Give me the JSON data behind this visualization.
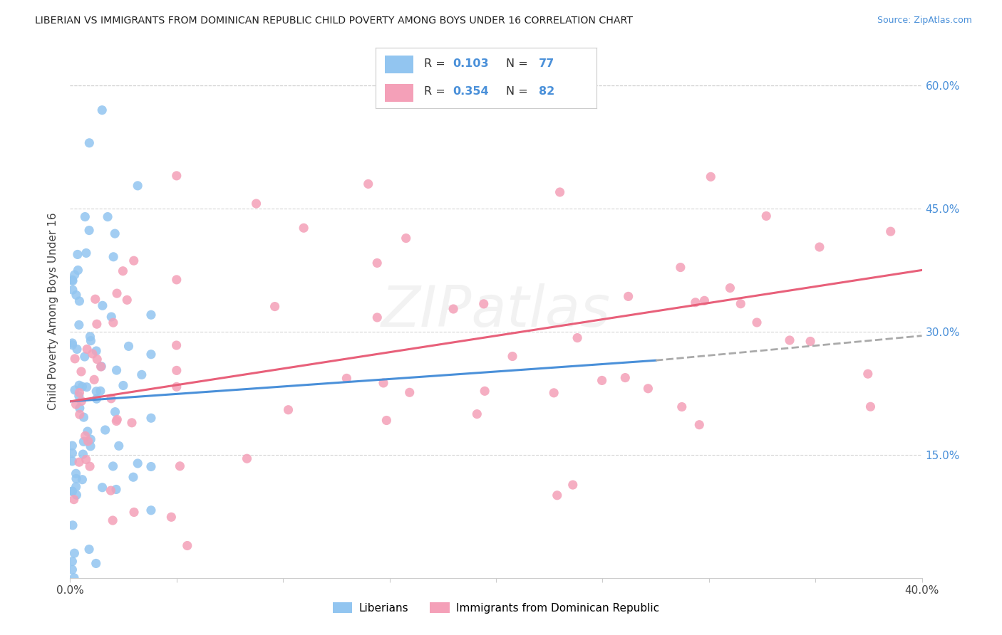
{
  "title": "LIBERIAN VS IMMIGRANTS FROM DOMINICAN REPUBLIC CHILD POVERTY AMONG BOYS UNDER 16 CORRELATION CHART",
  "source": "Source: ZipAtlas.com",
  "ylabel": "Child Poverty Among Boys Under 16",
  "xlim": [
    0,
    0.4
  ],
  "ylim": [
    0,
    0.65
  ],
  "xtick_positions": [
    0.0,
    0.05,
    0.1,
    0.15,
    0.2,
    0.25,
    0.3,
    0.35,
    0.4
  ],
  "xtick_labels": [
    "0.0%",
    "",
    "",
    "",
    "",
    "",
    "",
    "",
    "40.0%"
  ],
  "ytick_positions_right": [
    0.6,
    0.45,
    0.3,
    0.15
  ],
  "ytick_labels_right": [
    "60.0%",
    "45.0%",
    "30.0%",
    "15.0%"
  ],
  "liberian_color": "#92C5F0",
  "dr_color": "#F4A0B8",
  "liberian_line_color": "#4A90D9",
  "dr_line_color": "#E8607A",
  "dashed_line_color": "#AAAAAA",
  "grid_color": "#CCCCCC",
  "background_color": "#FFFFFF",
  "legend_label_1": "Liberians",
  "legend_label_2": "Immigrants from Dominican Republic",
  "liberian_R": 0.103,
  "liberian_N": 77,
  "dr_R": 0.354,
  "dr_N": 82,
  "lib_line_x_start": 0.0,
  "lib_line_x_solid_end": 0.275,
  "lib_line_x_dash_end": 0.4,
  "lib_line_y_start": 0.215,
  "lib_line_y_solid_end": 0.265,
  "lib_line_y_dash_end": 0.295,
  "dr_line_x_start": 0.0,
  "dr_line_x_end": 0.4,
  "dr_line_y_start": 0.215,
  "dr_line_y_end": 0.375
}
